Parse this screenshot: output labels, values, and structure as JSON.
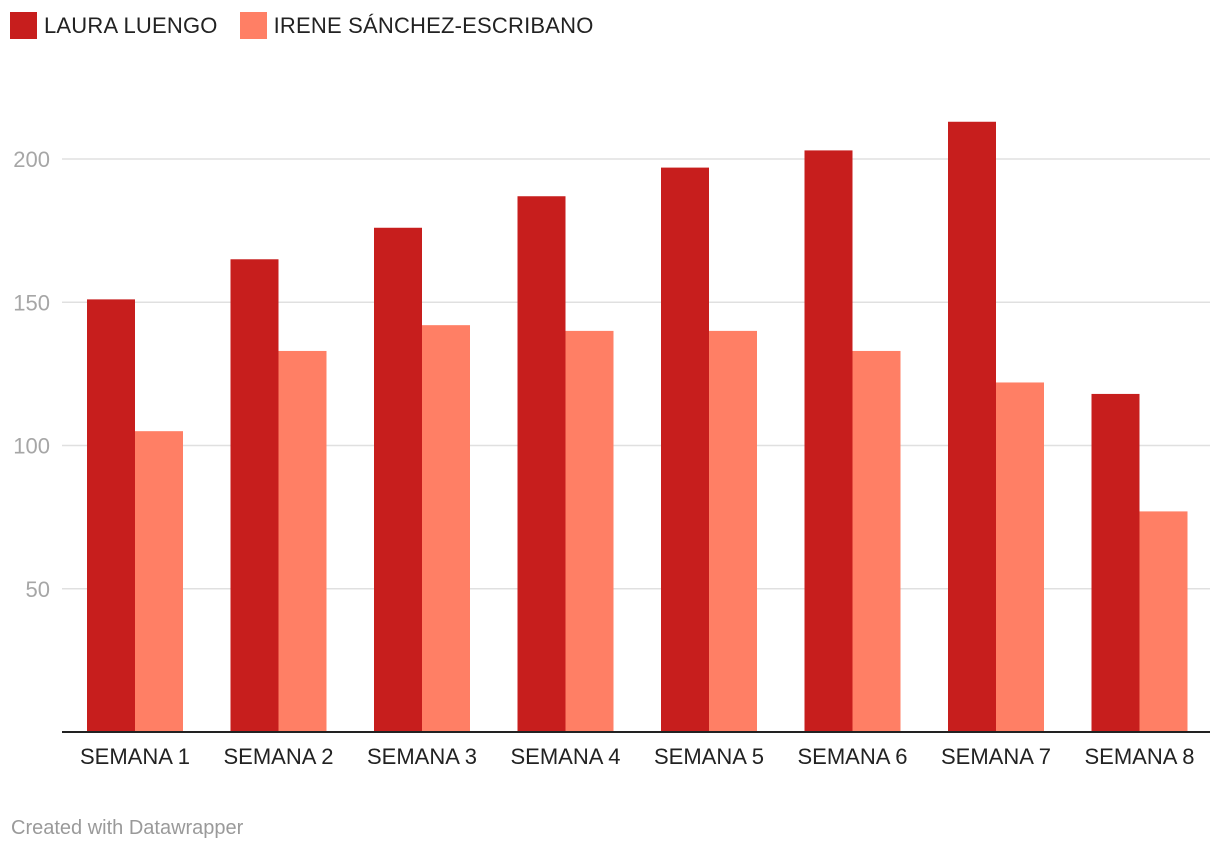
{
  "legend": {
    "items": [
      {
        "label": "LAURA LUENGO",
        "color": "#c71e1d"
      },
      {
        "label": "IRENE SÁNCHEZ-ESCRIBANO",
        "color": "#ff7f65"
      }
    ]
  },
  "footer": {
    "credit": "Created with Datawrapper"
  },
  "chart_data": {
    "type": "bar",
    "categories": [
      "SEMANA 1",
      "SEMANA 2",
      "SEMANA 3",
      "SEMANA 4",
      "SEMANA 5",
      "SEMANA 6",
      "SEMANA 7",
      "SEMANA 8"
    ],
    "series": [
      {
        "name": "LAURA LUENGO",
        "color": "#c71e1d",
        "values": [
          151,
          165,
          176,
          187,
          197,
          203,
          213,
          118
        ]
      },
      {
        "name": "IRENE SÁNCHEZ-ESCRIBANO",
        "color": "#ff7f65",
        "values": [
          105,
          133,
          142,
          140,
          140,
          133,
          122,
          77
        ]
      }
    ],
    "yticks": [
      50,
      100,
      150,
      200
    ],
    "ylim": [
      0,
      225
    ],
    "grid": true,
    "legend_position": "top-left",
    "title": "",
    "xlabel": "",
    "ylabel": ""
  }
}
